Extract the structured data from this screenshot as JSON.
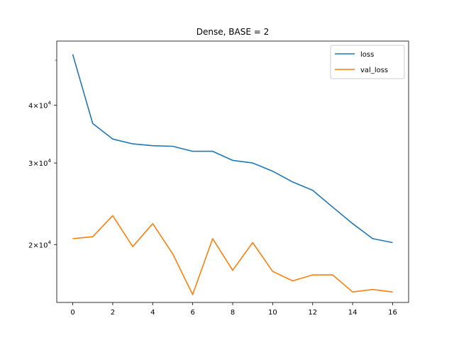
{
  "chart_data": {
    "type": "line",
    "title": "Dense, BASE = 2",
    "xlabel": "",
    "ylabel": "",
    "x": [
      0,
      1,
      2,
      3,
      4,
      5,
      6,
      7,
      8,
      9,
      10,
      11,
      12,
      13,
      14,
      15,
      16
    ],
    "xticks": [
      0,
      2,
      4,
      6,
      8,
      10,
      12,
      14,
      16
    ],
    "xticklabels": [
      "0",
      "2",
      "4",
      "6",
      "8",
      "10",
      "12",
      "14",
      "16"
    ],
    "xlim": [
      -0.8,
      16.8
    ],
    "yscale": "log",
    "ylim": [
      15000,
      55000
    ],
    "yticks": [
      20000,
      30000,
      40000
    ],
    "yticklabels": [
      {
        "base": "2",
        "mult": "×",
        "ten": "10",
        "exp": "4"
      },
      {
        "base": "3",
        "mult": "×",
        "ten": "10",
        "exp": "4"
      },
      {
        "base": "4",
        "mult": "×",
        "ten": "10",
        "exp": "4"
      }
    ],
    "y_minor_unlabeled_ticks": [
      50000
    ],
    "grid": false,
    "legend_position": "top-right",
    "series": [
      {
        "name": "loss",
        "color": "#1f77b4",
        "values": [
          51500,
          36500,
          33800,
          33000,
          32700,
          32600,
          31800,
          31800,
          30400,
          30000,
          28800,
          27300,
          26200,
          24100,
          22200,
          20600,
          20200
        ]
      },
      {
        "name": "val_loss",
        "color": "#ff7f0e",
        "values": [
          20600,
          20800,
          23100,
          19800,
          22200,
          19100,
          15600,
          20600,
          17600,
          20200,
          17500,
          16700,
          17200,
          17200,
          15800,
          16000,
          15800
        ]
      }
    ]
  }
}
